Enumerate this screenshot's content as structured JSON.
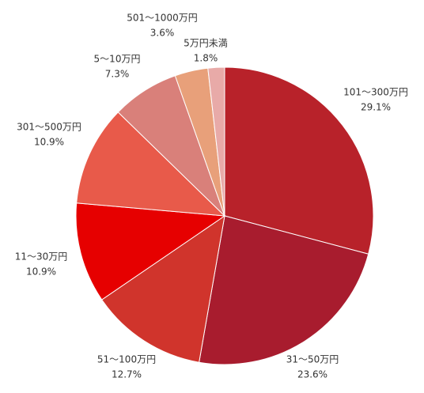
{
  "chart_data": {
    "type": "pie",
    "categories": [
      "101～300万円",
      "31～50万円",
      "51～100万円",
      "11～30万円",
      "301～500万円",
      "5～10万円",
      "501～1000万円",
      "5万円未満"
    ],
    "values": [
      29.1,
      23.6,
      12.7,
      10.9,
      10.9,
      7.3,
      3.6,
      1.8
    ],
    "value_labels": [
      "29.1%",
      "23.6%",
      "12.7%",
      "10.9%",
      "10.9%",
      "7.3%",
      "3.6%",
      "1.8%"
    ],
    "colors": [
      "#b8222a",
      "#a81c2e",
      "#d0342c",
      "#e60000",
      "#e85a4a",
      "#d9807a",
      "#e8a07a",
      "#e8aaa8"
    ]
  }
}
